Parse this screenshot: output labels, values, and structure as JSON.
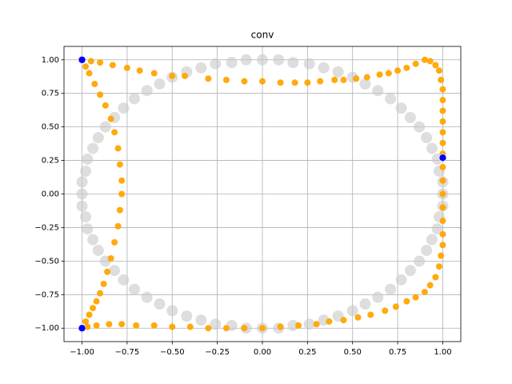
{
  "chart_data": {
    "type": "scatter",
    "title": "conv",
    "xlim": [
      -1.1,
      1.1
    ],
    "ylim": [
      -1.1,
      1.1
    ],
    "xticks": [
      {
        "value": -1,
        "label": "−1.00"
      },
      {
        "value": -0.75,
        "label": "−0.75"
      },
      {
        "value": -0.5,
        "label": "−0.50"
      },
      {
        "value": -0.25,
        "label": "−0.25"
      },
      {
        "value": 0,
        "label": "0.00"
      },
      {
        "value": 0.25,
        "label": "0.25"
      },
      {
        "value": 0.5,
        "label": "0.50"
      },
      {
        "value": 0.75,
        "label": "0.75"
      },
      {
        "value": 1,
        "label": "1.00"
      }
    ],
    "yticks": [
      {
        "value": -1,
        "label": "−1.00"
      },
      {
        "value": -0.75,
        "label": "−0.75"
      },
      {
        "value": -0.5,
        "label": "−0.50"
      },
      {
        "value": -0.25,
        "label": "−0.25"
      },
      {
        "value": 0,
        "label": "0.00"
      },
      {
        "value": 0.25,
        "label": "0.25"
      },
      {
        "value": 0.5,
        "label": "0.50"
      },
      {
        "value": 0.75,
        "label": "0.75"
      },
      {
        "value": 1,
        "label": "1.00"
      }
    ],
    "grid": true,
    "series": [
      {
        "color": "#c8c8c8",
        "x": [
          1,
          1,
          0.98,
          0.97,
          0.94,
          0.91,
          0.87,
          0.82,
          0.77,
          0.71,
          0.64,
          0.57,
          0.5,
          0.42,
          0.34,
          0.26,
          0.17,
          0.09,
          0,
          -0.09,
          -0.17,
          -0.26,
          -0.34,
          -0.42,
          -0.5,
          -0.57,
          -0.64,
          -0.71,
          -0.77,
          -0.82,
          -0.87,
          -0.91,
          -0.94,
          -0.97,
          -0.98,
          -1,
          -1,
          -1,
          -0.98,
          -0.97,
          -0.94,
          -0.91,
          -0.87,
          -0.82,
          -0.77,
          -0.71,
          -0.64,
          -0.57,
          -0.5,
          -0.42,
          -0.34,
          -0.26,
          -0.17,
          -0.09,
          0,
          0.09,
          0.17,
          0.26,
          0.34,
          0.42,
          0.5,
          0.57,
          0.64,
          0.71,
          0.77,
          0.82,
          0.87,
          0.91,
          0.94,
          0.97,
          0.98,
          1
        ],
        "y": [
          0,
          0.09,
          0.17,
          0.26,
          0.34,
          0.42,
          0.5,
          0.57,
          0.64,
          0.71,
          0.77,
          0.82,
          0.87,
          0.91,
          0.94,
          0.97,
          0.98,
          1,
          1,
          1,
          0.98,
          0.97,
          0.94,
          0.91,
          0.87,
          0.82,
          0.77,
          0.71,
          0.64,
          0.57,
          0.5,
          0.42,
          0.34,
          0.26,
          0.17,
          0.09,
          0,
          -0.09,
          -0.17,
          -0.26,
          -0.34,
          -0.42,
          -0.5,
          -0.57,
          -0.64,
          -0.71,
          -0.77,
          -0.82,
          -0.87,
          -0.91,
          -0.94,
          -0.97,
          -0.98,
          -1,
          -1,
          -1,
          -0.98,
          -0.97,
          -0.94,
          -0.91,
          -0.87,
          -0.82,
          -0.77,
          -0.71,
          -0.64,
          -0.57,
          -0.5,
          -0.42,
          -0.34,
          -0.26,
          -0.17,
          -0.09
        ]
      },
      {
        "color": "#ffa500",
        "x": [
          -1,
          -0.95,
          -0.9,
          -0.83,
          -0.75,
          -0.68,
          -0.6,
          -0.5,
          -0.43,
          -0.3,
          -0.2,
          -0.1,
          0,
          0.1,
          0.18,
          0.25,
          0.32,
          0.4,
          0.45,
          0.52,
          0.58,
          0.65,
          0.7,
          0.75,
          0.8,
          0.85,
          0.9,
          0.93,
          0.96,
          0.98,
          0.99,
          1,
          1,
          1,
          1,
          1,
          1,
          1,
          1,
          1,
          1,
          1,
          1,
          1,
          1,
          0.99,
          0.98,
          0.96,
          0.93,
          0.9,
          0.85,
          0.8,
          0.74,
          0.68,
          0.6,
          0.53,
          0.45,
          0.37,
          0.3,
          0.2,
          0.1,
          0,
          -0.1,
          -0.2,
          -0.3,
          -0.4,
          -0.5,
          -0.6,
          -0.7,
          -0.78,
          -0.85,
          -0.92,
          -0.97,
          -1,
          -0.98,
          -0.96,
          -0.94,
          -0.92,
          -0.9,
          -0.88,
          -0.86,
          -0.84,
          -0.82,
          -0.8,
          -0.79,
          -0.78,
          -0.78,
          -0.79,
          -0.8,
          -0.82,
          -0.84,
          -0.87,
          -0.9,
          -0.93,
          -0.96,
          -0.98
        ],
        "y": [
          1,
          0.99,
          0.98,
          0.96,
          0.94,
          0.92,
          0.9,
          0.88,
          0.88,
          0.86,
          0.85,
          0.84,
          0.84,
          0.83,
          0.83,
          0.83,
          0.84,
          0.85,
          0.85,
          0.86,
          0.87,
          0.89,
          0.9,
          0.92,
          0.94,
          0.97,
          1,
          0.99,
          0.96,
          0.92,
          0.85,
          0.78,
          0.7,
          0.62,
          0.54,
          0.46,
          0.38,
          0.3,
          0.2,
          0.1,
          0,
          -0.1,
          -0.2,
          -0.3,
          -0.38,
          -0.46,
          -0.54,
          -0.62,
          -0.68,
          -0.73,
          -0.77,
          -0.8,
          -0.84,
          -0.87,
          -0.9,
          -0.92,
          -0.94,
          -0.95,
          -0.97,
          -0.98,
          -0.99,
          -1,
          -1,
          -1,
          -1,
          -0.99,
          -0.99,
          -0.98,
          -0.98,
          -0.97,
          -0.97,
          -0.98,
          -0.99,
          -1,
          -0.95,
          -0.9,
          -0.85,
          -0.8,
          -0.74,
          -0.67,
          -0.58,
          -0.48,
          -0.36,
          -0.24,
          -0.12,
          0,
          0.1,
          0.22,
          0.34,
          0.46,
          0.56,
          0.66,
          0.74,
          0.82,
          0.9,
          0.95
        ]
      },
      {
        "color": "#0000ff",
        "x": [
          -1,
          1,
          -1
        ],
        "y": [
          1,
          0.27,
          -1
        ]
      }
    ]
  }
}
